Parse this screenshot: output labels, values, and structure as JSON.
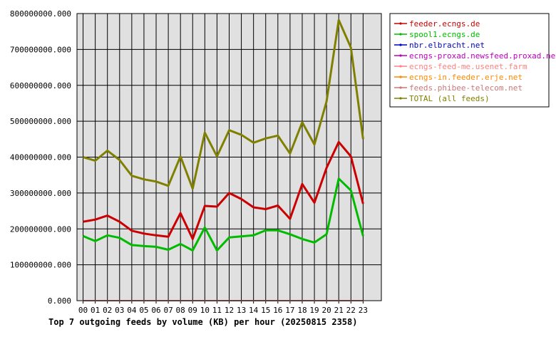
{
  "chart_data": {
    "type": "line",
    "title": "Top 7 outgoing feeds by volume (KB) per hour (20250815 2358)",
    "xlabel": "",
    "ylabel": "",
    "ylim": [
      0,
      800000000
    ],
    "y_ticks": [
      "0.000",
      "100000000.000",
      "200000000.000",
      "300000000.000",
      "400000000.000",
      "500000000.000",
      "600000000.000",
      "700000000.000",
      "800000000.000"
    ],
    "grid": true,
    "legend_position": "top-right",
    "categories": [
      "00",
      "01",
      "02",
      "03",
      "04",
      "05",
      "06",
      "07",
      "08",
      "09",
      "10",
      "11",
      "12",
      "13",
      "14",
      "15",
      "16",
      "17",
      "18",
      "19",
      "20",
      "21",
      "22",
      "23"
    ],
    "series": [
      {
        "name": "feeder.ecngs.de",
        "color": "#cc0000",
        "values": [
          220000000,
          226000000,
          237000000,
          220000000,
          195000000,
          187000000,
          182000000,
          178000000,
          244000000,
          172000000,
          264000000,
          262000000,
          300000000,
          283000000,
          260000000,
          255000000,
          265000000,
          228000000,
          325000000,
          273000000,
          370000000,
          442000000,
          402000000,
          270000000
        ]
      },
      {
        "name": "spool1.ecngs.de",
        "color": "#00bb00",
        "values": [
          180000000,
          166000000,
          182000000,
          175000000,
          155000000,
          152000000,
          150000000,
          142000000,
          158000000,
          140000000,
          204000000,
          140000000,
          176000000,
          179000000,
          182000000,
          196000000,
          196000000,
          185000000,
          172000000,
          162000000,
          185000000,
          340000000,
          307000000,
          180000000
        ]
      },
      {
        "name": "nbr.elbracht.net",
        "color": "#0000cc",
        "values": [
          0,
          0,
          0,
          0,
          0,
          0,
          0,
          0,
          0,
          0,
          0,
          0,
          0,
          0,
          0,
          0,
          0,
          0,
          0,
          0,
          0,
          0,
          0,
          0
        ]
      },
      {
        "name": "ecngs-proxad.newsfeed.proxad.net",
        "color": "#bb00bb",
        "values": [
          0,
          0,
          0,
          0,
          0,
          0,
          0,
          0,
          0,
          0,
          0,
          0,
          0,
          0,
          0,
          0,
          0,
          0,
          0,
          0,
          0,
          0,
          0,
          0
        ]
      },
      {
        "name": "ecngs-feed-me.usenet.farm",
        "color": "#ff8080",
        "values": [
          0,
          0,
          0,
          0,
          0,
          0,
          0,
          0,
          0,
          0,
          0,
          0,
          0,
          0,
          0,
          0,
          0,
          0,
          0,
          0,
          0,
          0,
          0,
          0
        ]
      },
      {
        "name": "ecngs-in.feeder.erje.net",
        "color": "#ff8800",
        "values": [
          0,
          0,
          0,
          0,
          0,
          0,
          0,
          0,
          0,
          0,
          0,
          0,
          0,
          0,
          0,
          0,
          0,
          0,
          0,
          0,
          0,
          0,
          0,
          0
        ]
      },
      {
        "name": "feeds.phibee-telecom.net",
        "color": "#cc7777",
        "values": [
          0,
          0,
          0,
          0,
          0,
          0,
          0,
          0,
          0,
          0,
          0,
          0,
          0,
          0,
          0,
          0,
          0,
          0,
          0,
          0,
          0,
          0,
          0,
          0
        ]
      },
      {
        "name": "TOTAL (all feeds)",
        "color": "#808000",
        "values": [
          400000000,
          390000000,
          418000000,
          392000000,
          348000000,
          338000000,
          332000000,
          320000000,
          402000000,
          312000000,
          468000000,
          402000000,
          475000000,
          462000000,
          440000000,
          452000000,
          460000000,
          410000000,
          497000000,
          435000000,
          555000000,
          782000000,
          705000000,
          450000000
        ]
      }
    ]
  }
}
